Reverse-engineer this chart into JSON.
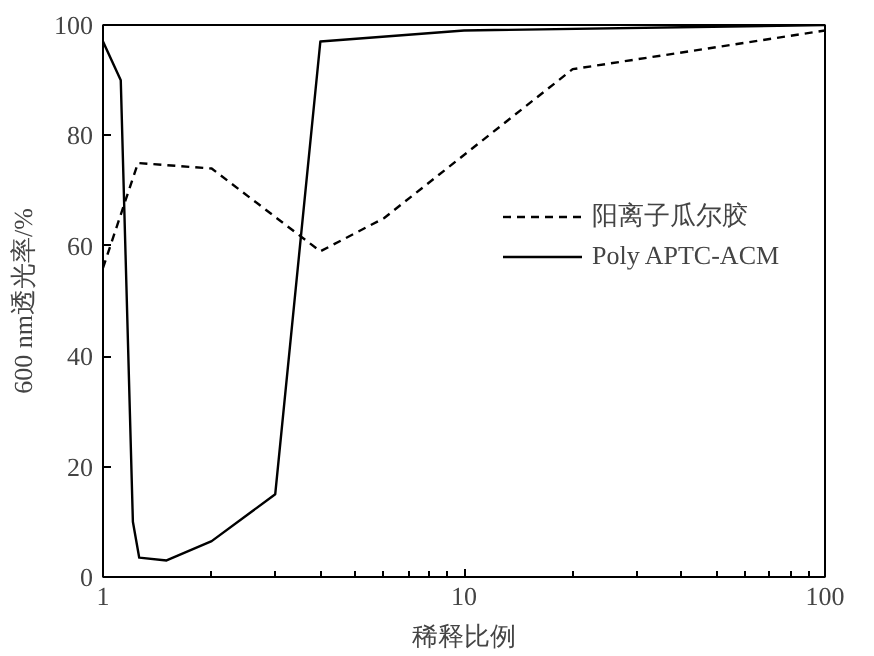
{
  "chart_data": {
    "type": "line",
    "xlabel": "稀释比例",
    "ylabel": "600 nm透光率/%",
    "log": "x",
    "xlim": [
      1,
      100
    ],
    "xticks": [
      1,
      10,
      100
    ],
    "ylim": [
      0,
      100
    ],
    "yticks": [
      0,
      20,
      40,
      60,
      80,
      100
    ],
    "grid": false,
    "legend": "right",
    "marker": "none",
    "series": [
      {
        "name": "阳离子瓜尔胶",
        "color": "#000000",
        "line_style": "dashed",
        "x": [
          1,
          1.25,
          2,
          4,
          6,
          20,
          100
        ],
        "values": [
          56,
          75,
          74,
          59,
          65,
          92,
          99
        ]
      },
      {
        "name": "Poly APTC-ACM",
        "color": "#000000",
        "line_style": "solid",
        "x": [
          1,
          1.12,
          1.21,
          1.26,
          1.5,
          2,
          3,
          4,
          10,
          100
        ],
        "values": [
          97,
          90,
          10,
          3.5,
          3,
          6.5,
          15,
          97,
          99,
          100
        ]
      }
    ]
  }
}
